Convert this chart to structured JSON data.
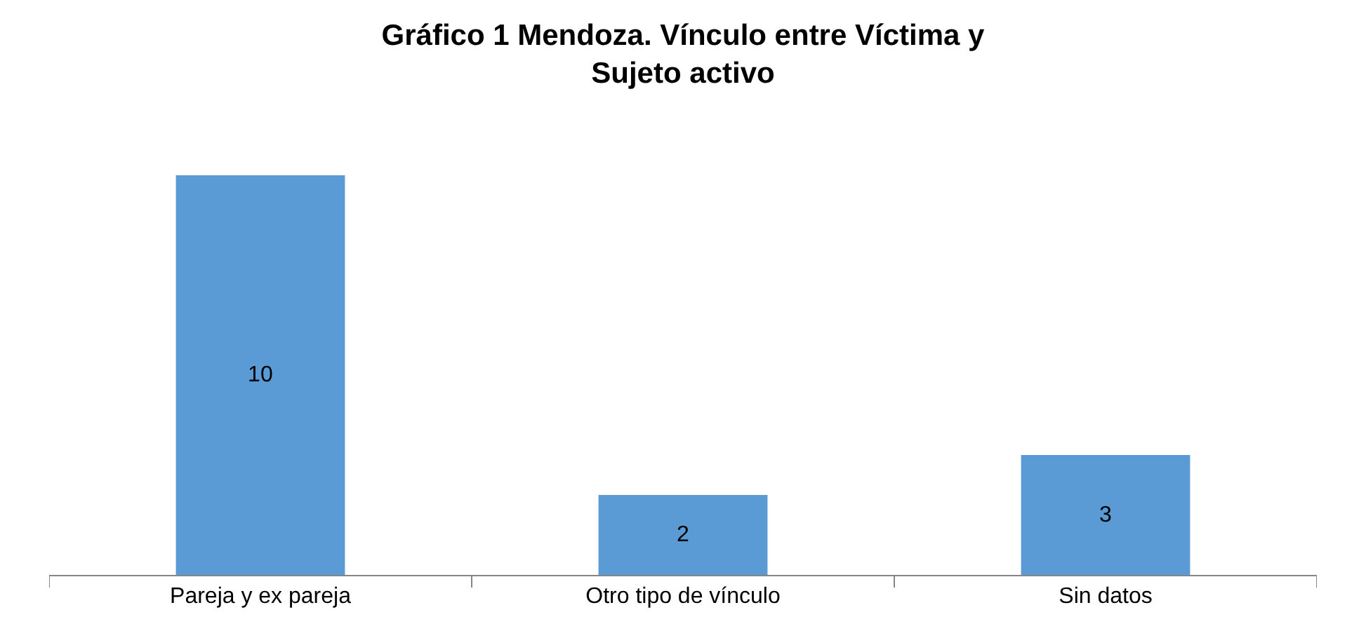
{
  "chart_data": {
    "type": "bar",
    "title": "Gráfico 1 Mendoza. Vínculo entre Víctima y Sujeto activo",
    "categories": [
      "Pareja y ex pareja",
      "Otro tipo de vínculo",
      "Sin datos"
    ],
    "values": [
      10,
      2,
      3
    ],
    "color": "#5b9bd5",
    "data_labels": true
  }
}
